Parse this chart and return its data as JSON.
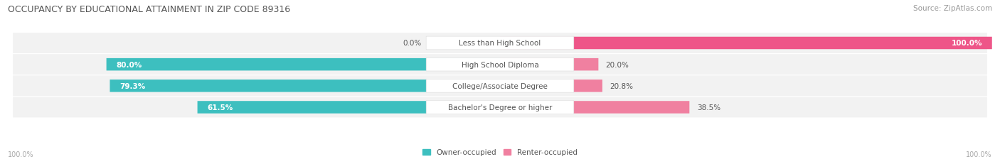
{
  "title": "OCCUPANCY BY EDUCATIONAL ATTAINMENT IN ZIP CODE 89316",
  "source": "Source: ZipAtlas.com",
  "categories": [
    "Less than High School",
    "High School Diploma",
    "College/Associate Degree",
    "Bachelor's Degree or higher"
  ],
  "owner_pct": [
    0.0,
    80.0,
    79.3,
    61.5
  ],
  "renter_pct": [
    100.0,
    20.0,
    20.8,
    38.5
  ],
  "owner_color": "#3dbfbf",
  "renter_color": "#f080a0",
  "renter_color_full": "#ee5588",
  "bar_height": 0.58,
  "figsize": [
    14.06,
    2.32
  ],
  "dpi": 100,
  "title_fontsize": 9,
  "label_fontsize": 7.5,
  "category_fontsize": 7.5,
  "legend_fontsize": 7.5,
  "axis_label_fontsize": 7,
  "title_color": "#555555",
  "source_color": "#999999",
  "text_color_white": "#ffffff",
  "text_color_dark": "#555555",
  "axis_label_color": "#aaaaaa",
  "bg_row_color": "#f0f0f0",
  "center_box_color": "#ffffff"
}
